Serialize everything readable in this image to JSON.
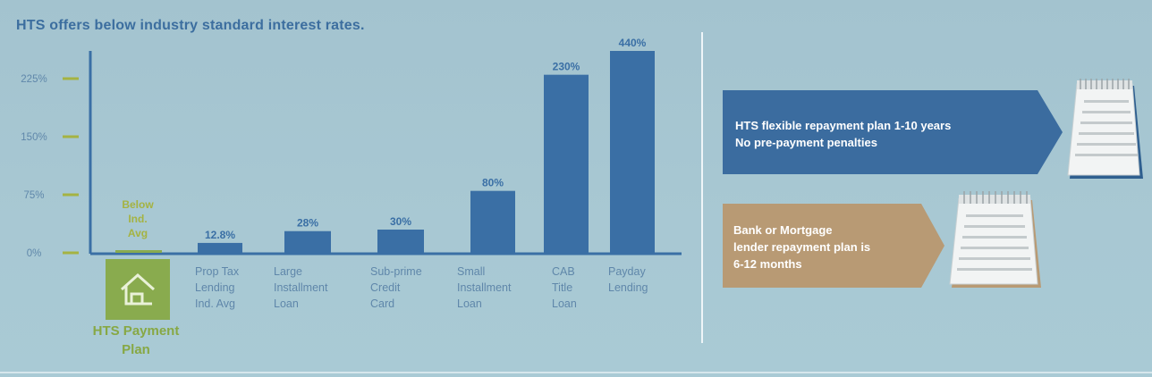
{
  "title": "HTS offers below industry standard interest rates.",
  "chart_data": {
    "type": "bar",
    "categories": [
      "HTS Payment Plan",
      "Prop Tax Lending Ind. Avg",
      "Large Installment Loan",
      "Sub-prime Credit Card",
      "Small Installment Loan",
      "CAB Title Loan",
      "Payday Lending"
    ],
    "values": [
      3,
      12.8,
      28,
      30,
      80,
      230,
      440
    ],
    "data_labels": [
      "Below Ind. Avg",
      "12.8%",
      "28%",
      "30%",
      "80%",
      "230%",
      "440%"
    ],
    "yticks": [
      "0%",
      "75%",
      "150%",
      "225%"
    ],
    "ytick_values": [
      0,
      75,
      150,
      225
    ],
    "ylim": [
      0,
      260
    ],
    "title": "HTS offers below industry standard interest rates.",
    "xlabel": "",
    "ylabel": "",
    "grid": false,
    "bar_color": "#3a6fa5",
    "highlight_color": "#89ab4e",
    "tick_color": "#a5b342"
  },
  "home": {
    "label_line1": "HTS Payment",
    "label_line2": "Plan",
    "below_line1": "Below",
    "below_line2": "Ind.",
    "below_line3": "Avg"
  },
  "category_labels": [
    [
      "Prop Tax",
      "Lending",
      "Ind. Avg"
    ],
    [
      "Large",
      "Installment",
      "Loan"
    ],
    [
      "Sub-prime",
      "Credit",
      "Card"
    ],
    [
      "Small",
      "Installment",
      "Loan"
    ],
    [
      "CAB",
      "Title",
      "Loan"
    ],
    [
      "Payday",
      "Lending"
    ]
  ],
  "banners": {
    "hts": {
      "line1": "HTS flexible repayment plan 1-10 years",
      "line2": "No pre-payment penalties",
      "color": "#3b6c9f"
    },
    "bank": {
      "line1": "Bank or Mortgage",
      "line2": "lender repayment plan is",
      "line3": "6-12 months",
      "color": "#b89a74"
    }
  }
}
